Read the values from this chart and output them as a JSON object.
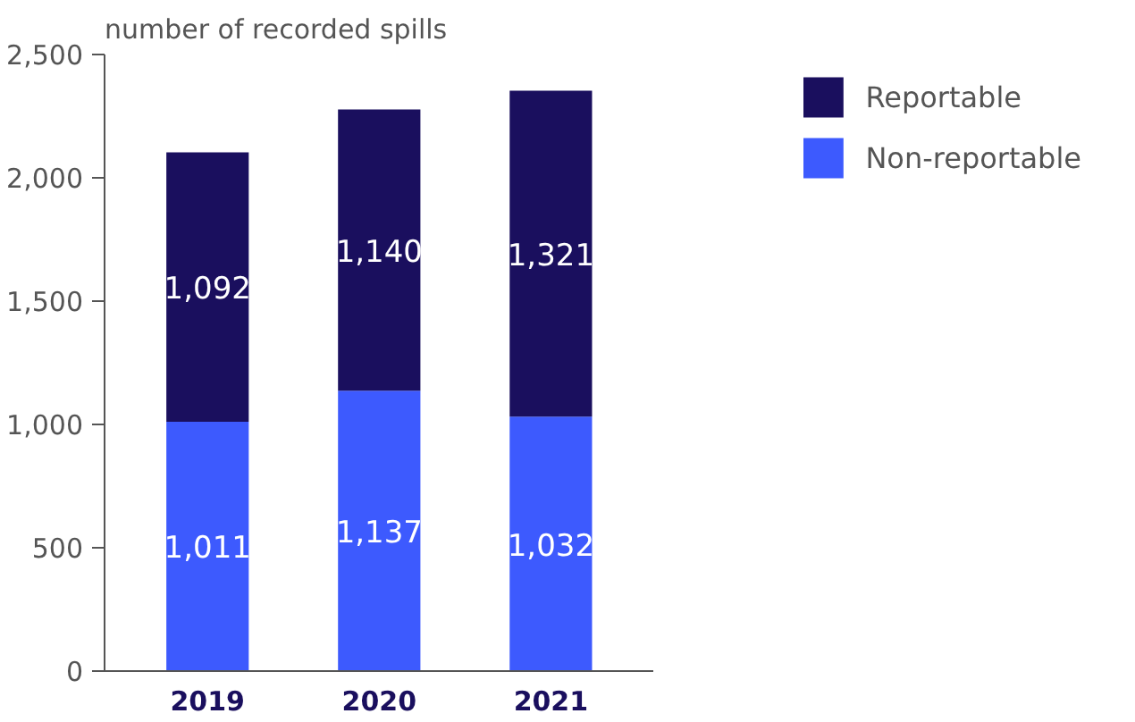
{
  "chart_data": {
    "type": "bar",
    "stacked": true,
    "ylabel": "number of recorded spills",
    "categories": [
      "2019",
      "2020",
      "2021"
    ],
    "series": [
      {
        "name": "Non-reportable",
        "color": "#3d5afe",
        "values": [
          1011,
          1137,
          1032
        ],
        "value_labels": [
          "1,011",
          "1,137",
          "1,032"
        ]
      },
      {
        "name": "Reportable",
        "color": "#1a0f5e",
        "values": [
          1092,
          1140,
          1321
        ],
        "value_labels": [
          "1,092",
          "1,140",
          "1,321"
        ]
      }
    ],
    "ylim": [
      0,
      2500
    ],
    "yticks": [
      {
        "value": 0,
        "label": "0"
      },
      {
        "value": 500,
        "label": "500"
      },
      {
        "value": 1000,
        "label": "1,000"
      },
      {
        "value": 1500,
        "label": "1,500"
      },
      {
        "value": 2000,
        "label": "2,000"
      },
      {
        "value": 2500,
        "label": "2,500"
      }
    ],
    "grid": false,
    "legend": "top right"
  }
}
